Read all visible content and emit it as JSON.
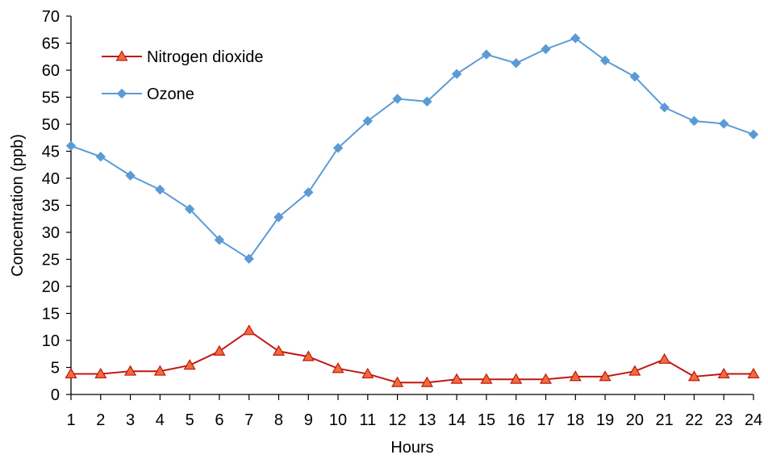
{
  "chart_data": {
    "type": "line",
    "title": "",
    "xlabel": "Hours",
    "ylabel": "Concentration (ppb)",
    "x": [
      1,
      2,
      3,
      4,
      5,
      6,
      7,
      8,
      9,
      10,
      11,
      12,
      13,
      14,
      15,
      16,
      17,
      18,
      19,
      20,
      21,
      22,
      23,
      24
    ],
    "xlim": [
      1,
      24
    ],
    "ylim": [
      0,
      70
    ],
    "yticks": [
      0,
      5,
      10,
      15,
      20,
      25,
      30,
      35,
      40,
      45,
      50,
      55,
      60,
      65,
      70
    ],
    "grid": false,
    "legend_position": "top-left",
    "series": [
      {
        "name": "Nitrogen dioxide",
        "color": "#c0180f",
        "marker_fill": "#f26b3a",
        "marker": "triangle",
        "values": [
          3.8,
          3.8,
          4.3,
          4.3,
          5.4,
          8.0,
          11.8,
          8.0,
          7.0,
          4.8,
          3.8,
          2.2,
          2.2,
          2.8,
          2.8,
          2.8,
          2.8,
          3.3,
          3.3,
          4.3,
          6.5,
          3.3,
          3.8,
          3.8
        ]
      },
      {
        "name": "Ozone",
        "color": "#5b9bd5",
        "marker_fill": "#5b9bd5",
        "marker": "diamond",
        "values": [
          46.0,
          44.0,
          40.5,
          37.9,
          34.3,
          28.6,
          25.1,
          32.8,
          37.4,
          45.6,
          50.6,
          54.7,
          54.2,
          59.3,
          62.9,
          61.3,
          63.9,
          65.9,
          61.8,
          58.8,
          53.1,
          50.6,
          50.1,
          48.1
        ]
      }
    ]
  }
}
